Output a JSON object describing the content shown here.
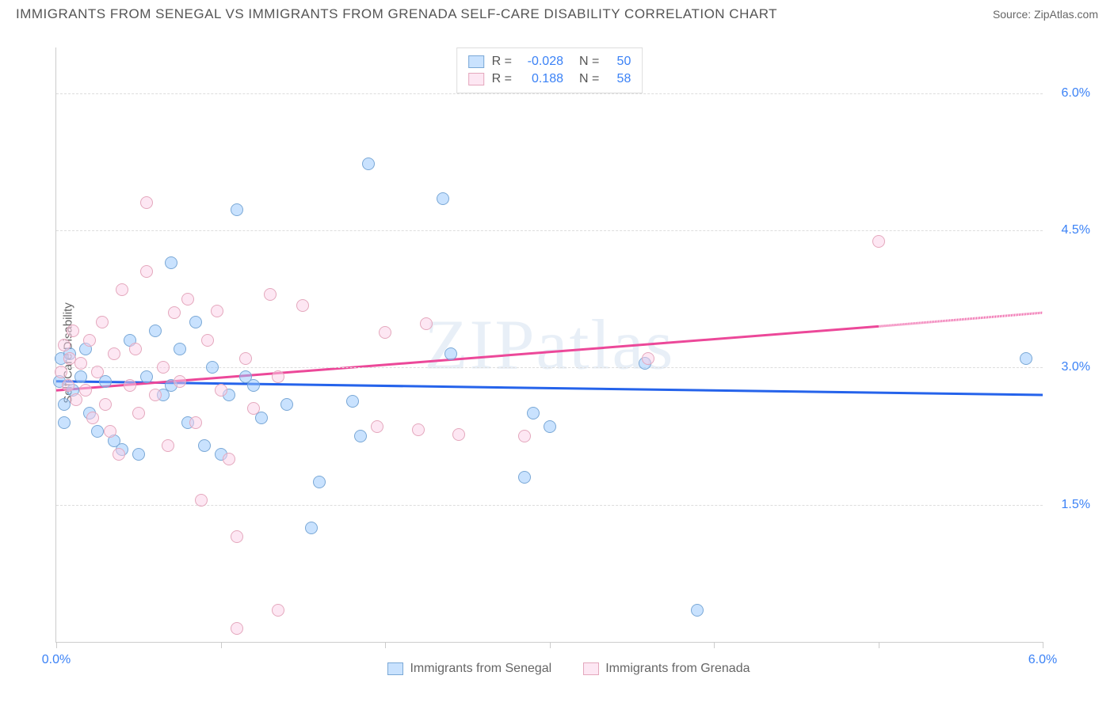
{
  "title": "IMMIGRANTS FROM SENEGAL VS IMMIGRANTS FROM GRENADA SELF-CARE DISABILITY CORRELATION CHART",
  "source": "Source: ZipAtlas.com",
  "watermark": "ZIPatlas",
  "y_axis_label": "Self-Care Disability",
  "chart": {
    "type": "scatter",
    "xlim": [
      0.0,
      6.0
    ],
    "ylim": [
      0.0,
      6.5
    ],
    "y_gridlines": [
      1.5,
      3.0,
      4.5,
      6.0
    ],
    "y_tick_labels": [
      "1.5%",
      "3.0%",
      "4.5%",
      "6.0%"
    ],
    "x_ticks": [
      0.0,
      1.0,
      2.0,
      3.0,
      4.0,
      5.0,
      6.0
    ],
    "x_labels_shown": {
      "0.0": "0.0%",
      "6.0": "6.0%"
    },
    "x_label_color": "#3b82f6",
    "y_label_color": "#3b82f6",
    "grid_color": "#dddddd",
    "background_color": "#ffffff",
    "axis_color": "#cccccc"
  },
  "series": [
    {
      "key": "senegal",
      "label": "Immigrants from Senegal",
      "fill": "rgba(147,197,253,0.5)",
      "stroke": "#7aa8d6",
      "line_color": "#2563eb",
      "R": "-0.028",
      "N": "50",
      "trend": {
        "x1": 0.0,
        "y1": 2.85,
        "x2": 6.0,
        "y2": 2.7
      },
      "points": [
        [
          0.02,
          2.85
        ],
        [
          0.03,
          3.1
        ],
        [
          0.05,
          2.6
        ],
        [
          0.05,
          2.4
        ],
        [
          0.08,
          3.15
        ],
        [
          0.1,
          2.75
        ],
        [
          0.15,
          2.9
        ],
        [
          0.18,
          3.2
        ],
        [
          0.2,
          2.5
        ],
        [
          0.25,
          2.3
        ],
        [
          0.3,
          2.85
        ],
        [
          0.35,
          2.2
        ],
        [
          0.4,
          2.1
        ],
        [
          0.45,
          3.3
        ],
        [
          0.5,
          2.05
        ],
        [
          0.55,
          2.9
        ],
        [
          0.6,
          3.4
        ],
        [
          0.65,
          2.7
        ],
        [
          0.7,
          4.15
        ],
        [
          0.7,
          2.8
        ],
        [
          0.75,
          3.2
        ],
        [
          0.8,
          2.4
        ],
        [
          0.85,
          3.5
        ],
        [
          0.9,
          2.15
        ],
        [
          0.95,
          3.0
        ],
        [
          1.0,
          2.05
        ],
        [
          1.05,
          2.7
        ],
        [
          1.1,
          4.73
        ],
        [
          1.15,
          2.9
        ],
        [
          1.2,
          2.8
        ],
        [
          1.25,
          2.45
        ],
        [
          1.4,
          2.6
        ],
        [
          1.55,
          1.25
        ],
        [
          1.6,
          1.75
        ],
        [
          1.8,
          2.63
        ],
        [
          1.85,
          2.25
        ],
        [
          1.9,
          5.23
        ],
        [
          2.35,
          4.85
        ],
        [
          2.4,
          3.15
        ],
        [
          2.85,
          1.8
        ],
        [
          2.9,
          2.5
        ],
        [
          3.0,
          2.35
        ],
        [
          3.58,
          3.05
        ],
        [
          3.9,
          0.35
        ],
        [
          5.9,
          3.1
        ]
      ]
    },
    {
      "key": "grenada",
      "label": "Immigrants from Grenada",
      "fill": "rgba(251,207,232,0.5)",
      "stroke": "#e4a8bd",
      "line_color": "#ec4899",
      "R": "0.188",
      "N": "58",
      "trend": {
        "x1": 0.0,
        "y1": 2.75,
        "x2": 5.0,
        "y2": 3.45
      },
      "trend_dashed_ext": {
        "x1": 5.0,
        "y1": 3.45,
        "x2": 6.0,
        "y2": 3.6
      },
      "points": [
        [
          0.03,
          2.95
        ],
        [
          0.05,
          3.25
        ],
        [
          0.07,
          2.8
        ],
        [
          0.08,
          3.1
        ],
        [
          0.1,
          3.4
        ],
        [
          0.12,
          2.65
        ],
        [
          0.15,
          3.05
        ],
        [
          0.18,
          2.75
        ],
        [
          0.2,
          3.3
        ],
        [
          0.22,
          2.45
        ],
        [
          0.25,
          2.95
        ],
        [
          0.28,
          3.5
        ],
        [
          0.3,
          2.6
        ],
        [
          0.33,
          2.3
        ],
        [
          0.35,
          3.15
        ],
        [
          0.38,
          2.05
        ],
        [
          0.4,
          3.85
        ],
        [
          0.45,
          2.8
        ],
        [
          0.48,
          3.2
        ],
        [
          0.5,
          2.5
        ],
        [
          0.55,
          4.05
        ],
        [
          0.55,
          4.8
        ],
        [
          0.6,
          2.7
        ],
        [
          0.65,
          3.0
        ],
        [
          0.68,
          2.15
        ],
        [
          0.72,
          3.6
        ],
        [
          0.75,
          2.85
        ],
        [
          0.8,
          3.75
        ],
        [
          0.85,
          2.4
        ],
        [
          0.88,
          1.55
        ],
        [
          0.92,
          3.3
        ],
        [
          0.98,
          3.62
        ],
        [
          1.0,
          2.75
        ],
        [
          1.05,
          2.0
        ],
        [
          1.1,
          1.15
        ],
        [
          1.1,
          0.15
        ],
        [
          1.15,
          3.1
        ],
        [
          1.2,
          2.55
        ],
        [
          1.3,
          3.8
        ],
        [
          1.35,
          2.9
        ],
        [
          1.35,
          0.35
        ],
        [
          1.5,
          3.68
        ],
        [
          1.95,
          2.35
        ],
        [
          2.0,
          3.38
        ],
        [
          2.2,
          2.32
        ],
        [
          2.25,
          3.48
        ],
        [
          2.45,
          2.27
        ],
        [
          2.85,
          2.25
        ],
        [
          3.6,
          3.1
        ],
        [
          5.0,
          4.38
        ]
      ]
    }
  ],
  "legend_top_header": {
    "R": "R =",
    "N": "N ="
  },
  "legend_bottom_items": [
    {
      "key": "senegal"
    },
    {
      "key": "grenada"
    }
  ]
}
